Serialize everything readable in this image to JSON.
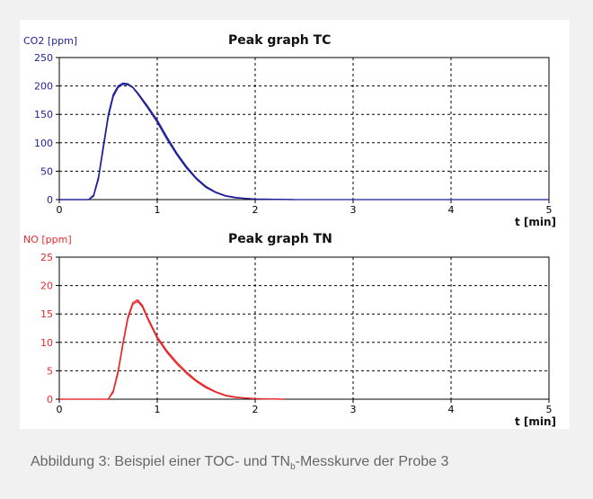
{
  "caption": {
    "before": "Abbildung 3: Beispiel einer TOC- und TN",
    "subscript": "b",
    "after": "-Messkurve der Probe 3"
  },
  "chart_data": [
    {
      "type": "line",
      "title": "Peak graph TC",
      "ylabel": "CO2 [ppm]",
      "xlabel": "t [min]",
      "xlim": [
        0,
        5
      ],
      "ylim": [
        0,
        250
      ],
      "xticks": [
        0,
        1,
        2,
        3,
        4,
        5
      ],
      "yticks": [
        0,
        50,
        100,
        150,
        200,
        250
      ],
      "grid": true,
      "color": "#1f1f9a",
      "axis_label_color": "#1f1f9a",
      "series": [
        {
          "x": [
            0,
            0.3,
            0.35,
            0.4,
            0.45,
            0.5,
            0.55,
            0.6,
            0.65,
            0.7,
            0.75,
            0.8,
            0.9,
            1.0,
            1.1,
            1.2,
            1.3,
            1.4,
            1.5,
            1.6,
            1.7,
            1.8,
            1.9,
            2.0,
            2.2,
            2.4
          ],
          "y": [
            0,
            0,
            8,
            40,
            95,
            150,
            185,
            200,
            205,
            204,
            198,
            188,
            165,
            140,
            110,
            82,
            58,
            38,
            23,
            13,
            7,
            4,
            2,
            1,
            0.5,
            0
          ]
        },
        {
          "x": [
            0,
            0.3,
            0.35,
            0.4,
            0.45,
            0.5,
            0.55,
            0.6,
            0.65,
            0.7,
            0.75,
            0.8,
            0.9,
            1.0,
            1.1,
            1.2,
            1.3,
            1.4,
            1.5,
            1.6,
            1.7,
            1.8,
            1.9,
            2.0,
            2.2,
            2.4
          ],
          "y": [
            0,
            0,
            6,
            36,
            90,
            145,
            181,
            197,
            203,
            202,
            197,
            186,
            162,
            136,
            106,
            79,
            55,
            36,
            21,
            12,
            6,
            3,
            2,
            1,
            0.5,
            0
          ]
        },
        {
          "x": [
            2.4,
            3.0,
            3.5,
            4.0,
            4.5,
            5.0
          ],
          "y": [
            0,
            0,
            0,
            0,
            0,
            0
          ]
        }
      ]
    },
    {
      "type": "line",
      "title": "Peak graph TN",
      "ylabel": "NO [ppm]",
      "xlabel": "t [min]",
      "xlim": [
        0,
        5
      ],
      "ylim": [
        0,
        25
      ],
      "xticks": [
        0,
        1,
        2,
        3,
        4,
        5
      ],
      "yticks": [
        0,
        5,
        10,
        15,
        20,
        25
      ],
      "grid": true,
      "color": "#e8282d",
      "axis_label_color": "#e8282d",
      "series": [
        {
          "x": [
            0,
            0.5,
            0.55,
            0.6,
            0.65,
            0.7,
            0.75,
            0.8,
            0.85,
            0.9,
            1.0,
            1.1,
            1.2,
            1.3,
            1.4,
            1.5,
            1.6,
            1.7,
            1.8,
            1.9,
            2.0,
            2.1,
            2.3
          ],
          "y": [
            0,
            0,
            1.5,
            5,
            10,
            14.5,
            17,
            17.5,
            16.5,
            14.5,
            11,
            8.5,
            6.5,
            4.8,
            3.3,
            2.2,
            1.3,
            0.7,
            0.4,
            0.2,
            0.1,
            0.05,
            0
          ]
        },
        {
          "x": [
            0,
            0.5,
            0.55,
            0.6,
            0.65,
            0.7,
            0.75,
            0.8,
            0.85,
            0.9,
            1.0,
            1.1,
            1.2,
            1.3,
            1.4,
            1.5,
            1.6,
            1.7,
            1.8,
            1.9,
            2.0,
            2.1,
            2.3
          ],
          "y": [
            0,
            0,
            1.2,
            4.6,
            9.6,
            14.1,
            16.7,
            17.2,
            16.2,
            14.2,
            10.7,
            8.2,
            6.2,
            4.5,
            3.1,
            2.0,
            1.2,
            0.6,
            0.3,
            0.2,
            0.1,
            0.05,
            0
          ]
        }
      ]
    }
  ]
}
